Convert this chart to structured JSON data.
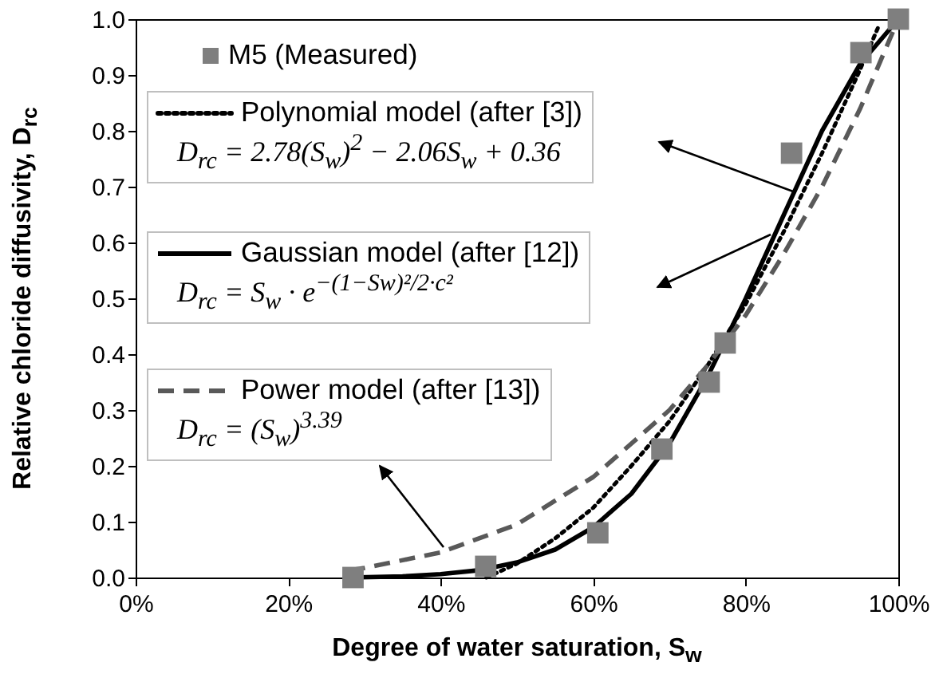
{
  "chart_data": {
    "type": "line",
    "xlabel": "Degree of water saturation, S$_{w}$",
    "ylabel": "Relative chloride diffusivity, D$_{rc}$",
    "xlim": [
      0,
      100
    ],
    "xticks": [
      {
        "value": 0,
        "label": "0%"
      },
      {
        "value": 20,
        "label": "20%"
      },
      {
        "value": 40,
        "label": "40%"
      },
      {
        "value": 60,
        "label": "60%"
      },
      {
        "value": 80,
        "label": "80%"
      },
      {
        "value": 100,
        "label": "100%"
      }
    ],
    "ylim": [
      0,
      1
    ],
    "yticks": [
      {
        "value": 0,
        "label": "0.0"
      },
      0.1,
      0.2,
      0.3,
      0.4,
      0.5,
      0.6,
      0.7,
      0.8,
      0.9,
      {
        "value": 1,
        "label": "1.0"
      }
    ],
    "legend": "top left",
    "grid": false,
    "annotations": [
      "D$_{rc}$ = 2.78(S$_{w}$)$^{2}$ − 2.06S$_{w}$ + 0.36",
      "D$_{rc}$ = S$_{w}$ · e$^{−(1−Sw)²/2·c²}$",
      "D$_{rc}$ = (S$_{w}$)$^{3.39}$"
    ],
    "series": [
      {
        "name": "M5 (Measured)",
        "type": "scatter",
        "marker": "square",
        "color": "#7f7f7f",
        "x": [
          28.5,
          45.9,
          60.6,
          69,
          75.2,
          77.3,
          86,
          95.1,
          100
        ],
        "values": [
          0,
          0.02,
          0.08,
          0.23,
          0.35,
          0.42,
          0.76,
          0.94,
          1.0
        ]
      },
      {
        "name": "Polynomial model (after [3])",
        "type": "line",
        "line_style": "dotted",
        "color": "#000000",
        "x": [
          46,
          50,
          55,
          60,
          65,
          70,
          75,
          80,
          85,
          90,
          95,
          97.5
        ],
        "values": [
          0,
          0.025,
          0.07,
          0.125,
          0.2,
          0.28,
          0.38,
          0.49,
          0.62,
          0.76,
          0.91,
          0.99
        ]
      },
      {
        "name": "Gaussian model (after [12])",
        "type": "line",
        "line_style": "solid",
        "color": "#000000",
        "x": [
          28,
          35,
          40,
          45,
          50,
          55,
          60,
          65,
          70,
          75,
          80,
          85,
          90,
          95,
          100
        ],
        "values": [
          0,
          0.002,
          0.006,
          0.013,
          0.027,
          0.05,
          0.09,
          0.15,
          0.24,
          0.36,
          0.5,
          0.65,
          0.8,
          0.92,
          1.0
        ]
      },
      {
        "name": "Power model (after [13])",
        "type": "line",
        "line_style": "dashed",
        "color": "#595959",
        "x": [
          28,
          30,
          40,
          50,
          60,
          70,
          75,
          80,
          85,
          90,
          95,
          100
        ],
        "values": [
          0.013,
          0.017,
          0.045,
          0.095,
          0.18,
          0.3,
          0.38,
          0.47,
          0.58,
          0.7,
          0.84,
          1.0
        ]
      }
    ]
  }
}
